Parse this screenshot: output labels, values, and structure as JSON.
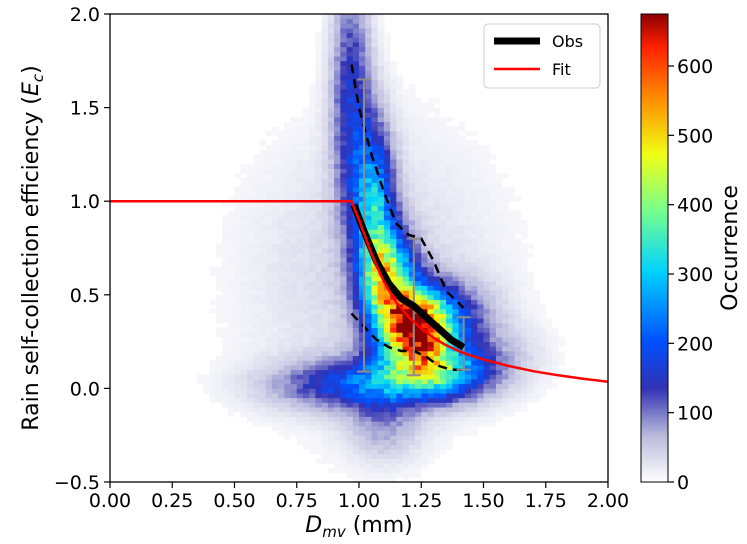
{
  "chart_data": {
    "type": "heatmap",
    "title": "",
    "xlabel": {
      "symbol": "D",
      "subscript": "mv",
      "unit": " (mm)"
    },
    "ylabel": {
      "text": "Rain self-collection efficiency (",
      "symbol": "E",
      "subscript": "c",
      "close": ")"
    },
    "xlim": [
      0,
      2
    ],
    "ylim": [
      -0.5,
      2
    ],
    "xticks": [
      "0.00",
      "0.25",
      "0.50",
      "0.75",
      "1.00",
      "1.25",
      "1.50",
      "1.75",
      "2.00"
    ],
    "yticks": [
      "−0.5",
      "0.0",
      "0.5",
      "1.0",
      "1.5",
      "2.0"
    ],
    "colorbar": {
      "label": "Occurrence",
      "range": [
        0,
        675
      ],
      "ticks": [
        "0",
        "100",
        "200",
        "300",
        "400",
        "500",
        "600"
      ],
      "colormap": "jet over white"
    },
    "legend": {
      "position": "top-right",
      "entries": [
        {
          "name": "Obs",
          "color": "#000000"
        },
        {
          "name": "Fit",
          "color": "#ff0000"
        }
      ]
    },
    "series": [
      {
        "name": "Obs",
        "color": "#000000",
        "x": [
          0.98,
          1.02,
          1.07,
          1.12,
          1.17,
          1.22,
          1.27,
          1.32,
          1.37,
          1.42
        ],
        "y": [
          0.98,
          0.84,
          0.68,
          0.56,
          0.48,
          0.44,
          0.38,
          0.32,
          0.26,
          0.22
        ]
      },
      {
        "name": "Fit",
        "color": "#ff0000",
        "x": [
          0.0,
          0.97,
          1.0,
          1.05,
          1.1,
          1.15,
          1.2,
          1.25,
          1.3,
          1.35,
          1.4,
          1.45,
          1.5,
          1.6,
          1.7,
          1.8,
          1.9,
          2.0
        ],
        "y": [
          1.0,
          1.0,
          0.9,
          0.72,
          0.57,
          0.46,
          0.38,
          0.32,
          0.27,
          0.23,
          0.2,
          0.175,
          0.155,
          0.12,
          0.092,
          0.07,
          0.052,
          0.036
        ]
      },
      {
        "name": "upper-dashed",
        "color": "#000000",
        "x": [
          0.97,
          1.0,
          1.05,
          1.1,
          1.15,
          1.2,
          1.25,
          1.3,
          1.35,
          1.42
        ],
        "y": [
          1.73,
          1.5,
          1.25,
          1.05,
          0.88,
          0.82,
          0.8,
          0.68,
          0.52,
          0.43
        ]
      },
      {
        "name": "lower-dashed",
        "color": "#000000",
        "x": [
          0.97,
          1.02,
          1.07,
          1.12,
          1.17,
          1.22,
          1.27,
          1.32,
          1.37,
          1.42
        ],
        "y": [
          0.4,
          0.33,
          0.26,
          0.22,
          0.2,
          0.2,
          0.17,
          0.12,
          0.1,
          0.1
        ]
      }
    ],
    "error_bars": [
      {
        "x": 1.02,
        "low": 0.09,
        "high": 1.65
      },
      {
        "x": 1.22,
        "low": 0.07,
        "high": 0.8
      },
      {
        "x": 1.42,
        "low": 0.1,
        "high": 0.38
      }
    ],
    "density": {
      "peak": [
        1.22,
        0.35
      ],
      "peak_value": 660,
      "cell": [
        0.025,
        0.025
      ]
    }
  }
}
